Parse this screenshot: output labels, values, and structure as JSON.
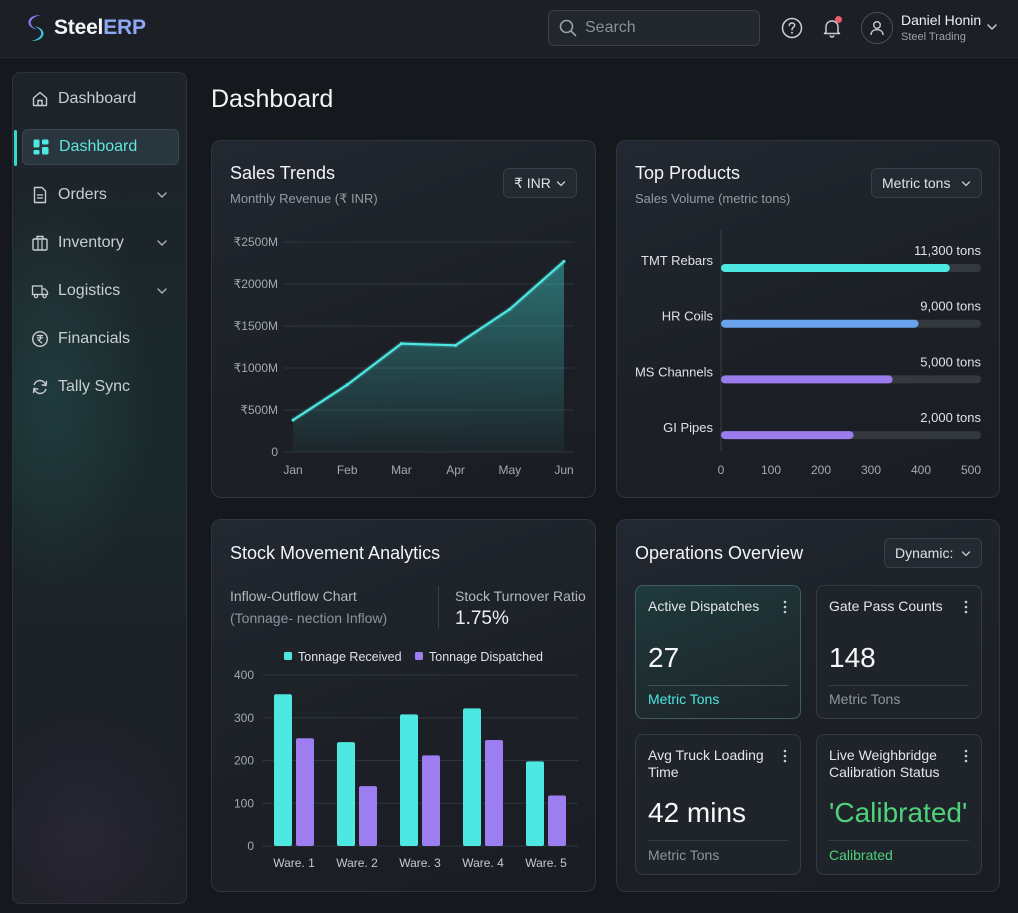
{
  "app": {
    "logo_prefix": "Steel",
    "logo_suffix": "ERP"
  },
  "header": {
    "search_placeholder": "Search",
    "user_name": "Daniel Honin",
    "user_role": "Steel Trading",
    "icons": [
      "help-icon",
      "bell-icon",
      "user-icon",
      "chevron-down-icon"
    ]
  },
  "sidebar": {
    "items": [
      {
        "label": "Dashboard",
        "icon": "home-icon",
        "expandable": false,
        "active": false
      },
      {
        "label": "Dashboard",
        "icon": "grid-icon",
        "expandable": false,
        "active": true
      },
      {
        "label": "Orders",
        "icon": "document-icon",
        "expandable": true,
        "active": false
      },
      {
        "label": "Inventory",
        "icon": "box-icon",
        "expandable": true,
        "active": false
      },
      {
        "label": "Logistics",
        "icon": "truck-icon",
        "expandable": true,
        "active": false
      },
      {
        "label": "Financials",
        "icon": "rupee-icon",
        "expandable": false,
        "active": false
      },
      {
        "label": "Tally Sync",
        "icon": "sync-icon",
        "expandable": false,
        "active": false
      }
    ]
  },
  "page": {
    "title": "Dashboard"
  },
  "sales_trends": {
    "title": "Sales Trends",
    "subtitle": "Monthly Revenue (₹ INR)",
    "currency": "₹ INR"
  },
  "top_products": {
    "title": "Top Products",
    "subtitle": "Sales Volume (metric tons)",
    "unit": "Metric tons"
  },
  "stock_movement": {
    "title": "Stock Movement Analytics",
    "chart_label": "Inflow-Outflow Chart",
    "chart_sublabel": "(Tonnage- ‪nection‪ Inflow)",
    "turnover_label": "Stock Turnover Ratio",
    "turnover_value": "1.75%"
  },
  "operations": {
    "title": "Operations Overview",
    "filter": "Dynamic:",
    "tiles": [
      {
        "label": "Active Dispatches",
        "value": "27",
        "foot": "Metric Tons"
      },
      {
        "label": "Gate Pass Counts",
        "value": "148",
        "foot": "Metric Tons"
      },
      {
        "label": "Avg Truck Loading Time",
        "value": "42 mins",
        "foot": "Metric Tons"
      },
      {
        "label": "Live Weighbridge Calibration Status",
        "value": "'Calibrated'",
        "foot": "Calibrated"
      }
    ]
  },
  "colors": {
    "accent": "#38d9d4",
    "received": "#4de8e2",
    "dispatched": "#9d7ef0",
    "success": "#4fd07a"
  },
  "chart_data": [
    {
      "type": "area",
      "categories": [
        "Jan",
        "Feb",
        "Mar",
        "Apr",
        "May",
        "Jun"
      ],
      "values": [
        380,
        800,
        1290,
        1270,
        1700,
        2270
      ],
      "y_ticks": [
        "₹2500M",
        "₹2000M",
        "₹1500M",
        "₹1000M",
        "₹500M",
        "0"
      ],
      "ylim": [
        0,
        2500
      ],
      "grid": true
    },
    {
      "type": "bar",
      "orientation": "horizontal",
      "categories": [
        "TMT Rebars",
        "HR Coils",
        "MS Channels",
        "GI Pipes"
      ],
      "values": [
        11300,
        9000,
        5000,
        2000
      ],
      "data_labels": [
        "11,300 tons",
        "9,000 tons",
        "5,000 tons",
        "2,000 tons"
      ],
      "bar_fill": [
        0.88,
        0.76,
        0.66,
        0.51
      ],
      "x_ticks": [
        "0",
        "100",
        "200",
        "300",
        "400",
        "500"
      ],
      "colors": [
        "#4de8e2",
        "#6aa2ee",
        "#9a7cec",
        "#9a7cec"
      ]
    },
    {
      "type": "bar",
      "categories": [
        "Ware. 1",
        "Ware. 2",
        "Ware. 3",
        "Ware. 4",
        "Ware. 5"
      ],
      "series": [
        {
          "name": "Tonnage Received",
          "values": [
            355,
            243,
            308,
            322,
            198
          ]
        },
        {
          "name": "Tonnage Dispatched",
          "values": [
            252,
            140,
            212,
            248,
            118
          ]
        }
      ],
      "y_ticks": [
        "400",
        "300",
        "200",
        "100",
        "0"
      ],
      "ylim": [
        0,
        400
      ],
      "legend": "top",
      "grid": true
    }
  ]
}
